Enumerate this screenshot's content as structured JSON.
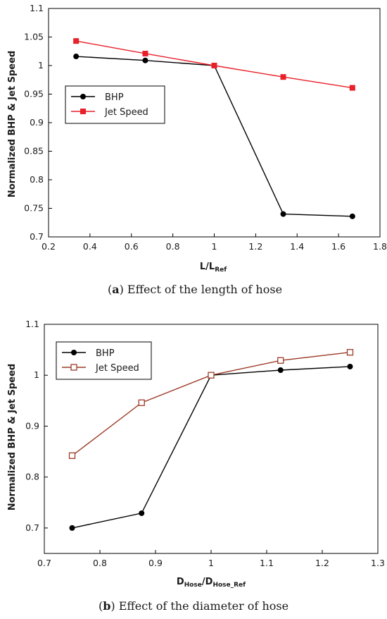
{
  "chart_data": [
    {
      "type": "line",
      "caption_letter": "a",
      "caption_text": "Effect of the length of hose",
      "ylabel": "Normalized BHP & Jet Speed",
      "xlabel_main": "L/L",
      "xlabel_sub": "Ref",
      "xlim": [
        0.2,
        1.8
      ],
      "ylim": [
        0.7,
        1.1
      ],
      "xticks": [
        0.2,
        0.4,
        0.6,
        0.8,
        1,
        1.2,
        1.4,
        1.6,
        1.8
      ],
      "yticks": [
        0.7,
        0.75,
        0.8,
        0.85,
        0.9,
        0.95,
        1,
        1.05,
        1.1
      ],
      "xtick_labels": [
        "0.2",
        "0.4",
        "0.6",
        "0.8",
        "1",
        "1.2",
        "1.4",
        "1.6",
        "1.8"
      ],
      "ytick_labels": [
        "0.7",
        "0.75",
        "0.8",
        "0.85",
        "0.9",
        "0.95",
        "1",
        "1.05",
        "1.1"
      ],
      "grid": false,
      "legend_position": "center-left",
      "series": [
        {
          "name": "BHP",
          "color": "#000000",
          "marker": "circle-filled",
          "x": [
            0.333,
            0.667,
            1.0,
            1.333,
            1.667
          ],
          "y": [
            1.016,
            1.009,
            1.0,
            0.74,
            0.736
          ]
        },
        {
          "name": "Jet Speed",
          "color": "#e8202a",
          "marker": "square-filled",
          "x": [
            0.333,
            0.667,
            1.0,
            1.333,
            1.667
          ],
          "y": [
            1.043,
            1.021,
            1.0,
            0.98,
            0.961
          ]
        }
      ]
    },
    {
      "type": "line",
      "caption_letter": "b",
      "caption_text": "Effect of the diameter of hose",
      "ylabel": "Normalized BHP & Jet Speed",
      "xlabel_main1": "D",
      "xlabel_sub1": "Hose",
      "xlabel_main2": "/D",
      "xlabel_sub2": "Hose_Ref",
      "xlim": [
        0.7,
        1.3
      ],
      "ylim": [
        0.65,
        1.1
      ],
      "xticks": [
        0.7,
        0.8,
        0.9,
        1,
        1.1,
        1.2,
        1.3
      ],
      "yticks": [
        0.7,
        0.8,
        0.9,
        1,
        1.1
      ],
      "xtick_labels": [
        "0.7",
        "0.8",
        "0.9",
        "1",
        "1.1",
        "1.2",
        "1.3"
      ],
      "ytick_labels": [
        "0.7",
        "0.8",
        "0.9",
        "1",
        "1.1"
      ],
      "grid": false,
      "legend_position": "top-left",
      "series": [
        {
          "name": "BHP",
          "color": "#000000",
          "marker": "circle-filled",
          "x": [
            0.75,
            0.875,
            1.0,
            1.125,
            1.25
          ],
          "y": [
            0.7,
            0.729,
            1.0,
            1.01,
            1.017
          ]
        },
        {
          "name": "Jet Speed",
          "color": "#9b3b27",
          "marker": "square-open",
          "x": [
            0.75,
            0.875,
            1.0,
            1.125,
            1.25
          ],
          "y": [
            0.842,
            0.946,
            1.0,
            1.029,
            1.045
          ]
        }
      ]
    }
  ]
}
